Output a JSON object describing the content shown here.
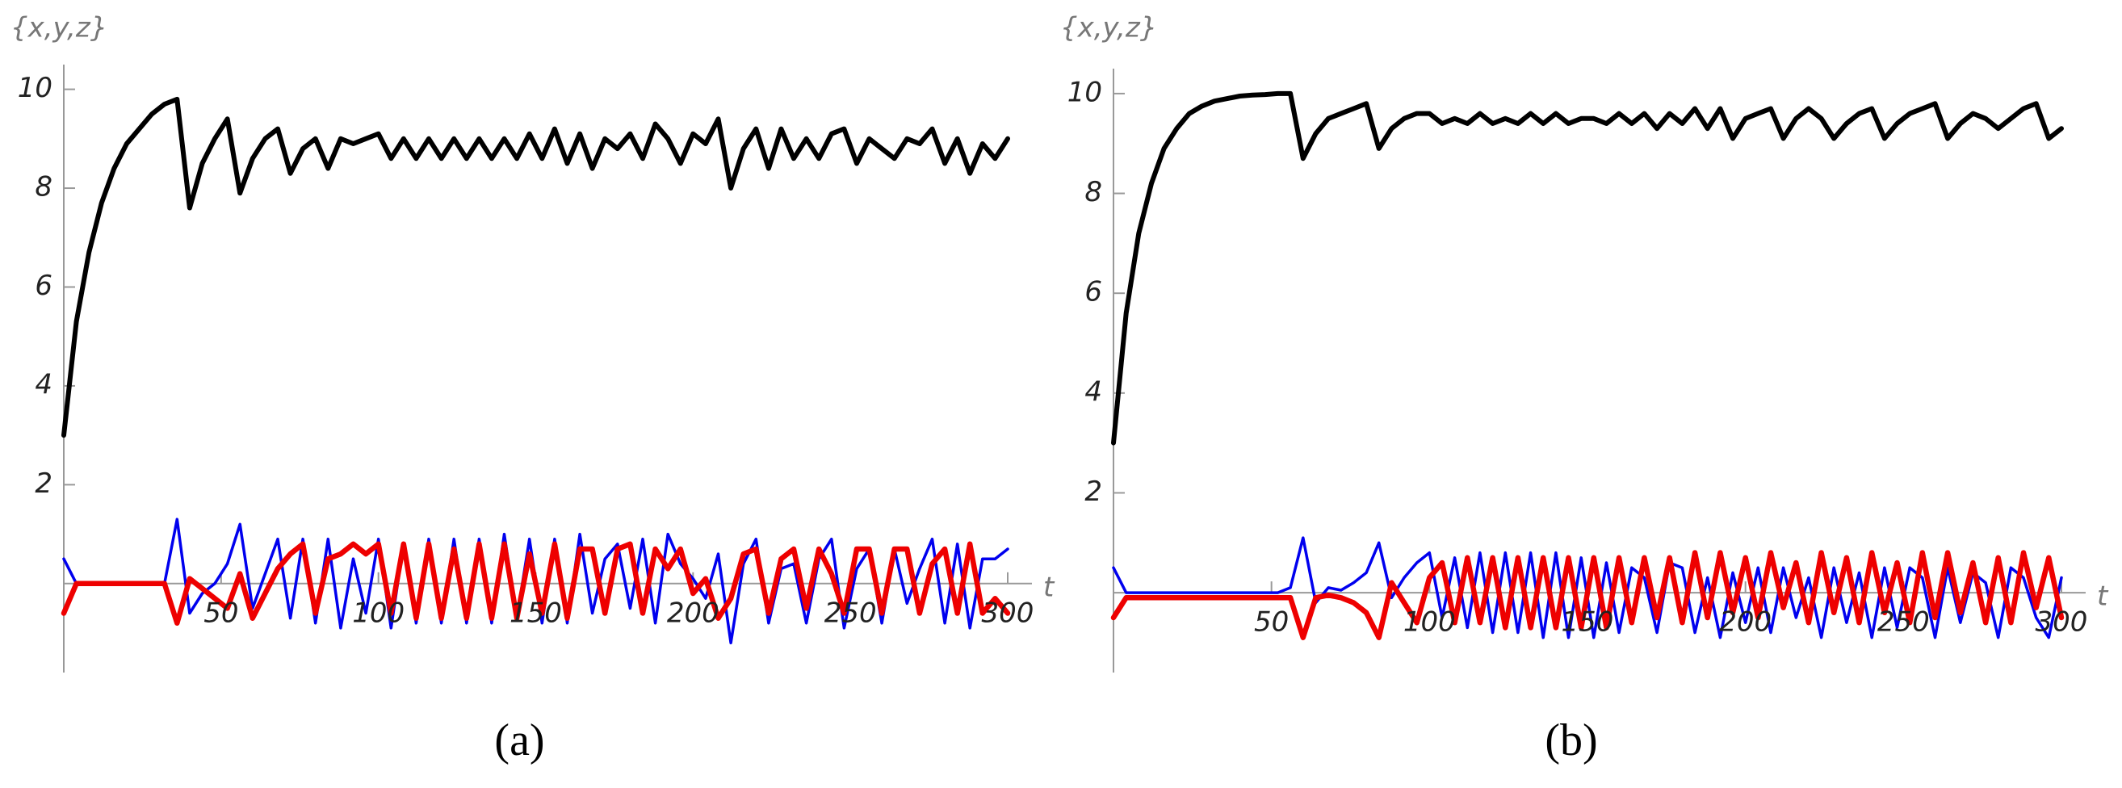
{
  "chart_data": [
    {
      "type": "line",
      "y_label": "{x,y,z}",
      "x_label": "t",
      "panel_label": "(a)",
      "xlim": [
        0,
        300
      ],
      "ylim": [
        -1.8,
        10.5
      ],
      "xticks": [
        50,
        100,
        150,
        200,
        250,
        300
      ],
      "yticks": [
        2,
        4,
        6,
        8,
        10
      ],
      "x": [
        0,
        4,
        8,
        12,
        16,
        20,
        24,
        28,
        32,
        36,
        40,
        44,
        48,
        52,
        56,
        60,
        64,
        68,
        72,
        76,
        80,
        84,
        88,
        92,
        96,
        100,
        104,
        108,
        112,
        116,
        120,
        124,
        128,
        132,
        136,
        140,
        144,
        148,
        152,
        156,
        160,
        164,
        168,
        172,
        176,
        180,
        184,
        188,
        192,
        196,
        200,
        204,
        208,
        212,
        216,
        220,
        224,
        228,
        232,
        236,
        240,
        244,
        248,
        252,
        256,
        260,
        264,
        268,
        272,
        276,
        280,
        284,
        288,
        292,
        296,
        300
      ],
      "series": [
        {
          "color": "#000000",
          "values": [
            3.0,
            5.3,
            6.7,
            7.7,
            8.4,
            8.9,
            9.2,
            9.5,
            9.7,
            9.8,
            7.6,
            8.5,
            9.0,
            9.4,
            7.9,
            8.6,
            9.0,
            9.2,
            8.3,
            8.8,
            9.0,
            8.4,
            9.0,
            8.9,
            9.0,
            9.1,
            8.6,
            9.0,
            8.6,
            9.0,
            8.6,
            9.0,
            8.6,
            9.0,
            8.6,
            9.0,
            8.6,
            9.1,
            8.6,
            9.2,
            8.5,
            9.1,
            8.4,
            9.0,
            8.8,
            9.1,
            8.6,
            9.3,
            9.0,
            8.5,
            9.1,
            8.9,
            9.4,
            8.0,
            8.8,
            9.2,
            8.4,
            9.2,
            8.6,
            9.0,
            8.6,
            9.1,
            9.2,
            8.5,
            9.0,
            8.8,
            8.6,
            9.0,
            8.9,
            9.2,
            8.5,
            9.0,
            8.3,
            8.9,
            8.6,
            9.0
          ]
        },
        {
          "color": "#0000ee",
          "values": [
            0.5,
            0,
            0,
            0,
            0,
            0,
            0,
            0,
            0,
            1.3,
            -0.6,
            -0.2,
            0,
            0.4,
            1.2,
            -0.5,
            0.2,
            0.9,
            -0.7,
            0.9,
            -0.8,
            0.9,
            -0.9,
            0.5,
            -0.6,
            0.9,
            -0.9,
            0.8,
            -0.8,
            0.9,
            -0.8,
            0.9,
            -0.8,
            0.9,
            -0.8,
            1.0,
            -0.7,
            0.9,
            -0.8,
            0.9,
            -0.8,
            1.0,
            -0.6,
            0.5,
            0.8,
            -0.5,
            0.9,
            -0.8,
            1.0,
            0.4,
            0.1,
            -0.3,
            0.6,
            -1.2,
            0.4,
            0.9,
            -0.8,
            0.3,
            0.4,
            -0.8,
            0.5,
            0.9,
            -0.9,
            0.3,
            0.7,
            -0.8,
            0.7,
            -0.4,
            0.3,
            0.9,
            -0.8,
            0.8,
            -0.9,
            0.5,
            0.5,
            0.7
          ]
        },
        {
          "color": "#ee0000",
          "values": [
            -0.6,
            0,
            0,
            0,
            0,
            0,
            0,
            0,
            0,
            -0.8,
            0.1,
            -0.1,
            -0.3,
            -0.5,
            0.2,
            -0.7,
            -0.2,
            0.3,
            0.6,
            0.8,
            -0.6,
            0.5,
            0.6,
            0.8,
            0.6,
            0.8,
            -0.6,
            0.8,
            -0.7,
            0.8,
            -0.7,
            0.7,
            -0.7,
            0.8,
            -0.7,
            0.8,
            -0.7,
            0.6,
            -0.6,
            0.8,
            -0.7,
            0.7,
            0.7,
            -0.6,
            0.7,
            0.8,
            -0.6,
            0.7,
            0.3,
            0.7,
            -0.2,
            0.1,
            -0.7,
            -0.3,
            0.6,
            0.7,
            -0.6,
            0.5,
            0.7,
            -0.5,
            0.7,
            0.2,
            -0.6,
            0.7,
            0.7,
            -0.6,
            0.7,
            0.7,
            -0.6,
            0.4,
            0.7,
            -0.6,
            0.8,
            -0.6,
            -0.3,
            -0.6
          ]
        }
      ]
    },
    {
      "type": "line",
      "y_label": "{x,y,z}",
      "x_label": "t",
      "panel_label": "(b)",
      "xlim": [
        0,
        300
      ],
      "ylim": [
        -1.6,
        10.5
      ],
      "xticks": [
        50,
        100,
        150,
        200,
        250,
        300
      ],
      "yticks": [
        2,
        4,
        6,
        8,
        10
      ],
      "x": [
        0,
        4,
        8,
        12,
        16,
        20,
        24,
        28,
        32,
        36,
        40,
        44,
        48,
        52,
        56,
        60,
        64,
        68,
        72,
        76,
        80,
        84,
        88,
        92,
        96,
        100,
        104,
        108,
        112,
        116,
        120,
        124,
        128,
        132,
        136,
        140,
        144,
        148,
        152,
        156,
        160,
        164,
        168,
        172,
        176,
        180,
        184,
        188,
        192,
        196,
        200,
        204,
        208,
        212,
        216,
        220,
        224,
        228,
        232,
        236,
        240,
        244,
        248,
        252,
        256,
        260,
        264,
        268,
        272,
        276,
        280,
        284,
        288,
        292,
        296,
        300
      ],
      "series": [
        {
          "color": "#000000",
          "values": [
            3.0,
            5.6,
            7.2,
            8.2,
            8.9,
            9.3,
            9.6,
            9.75,
            9.85,
            9.9,
            9.95,
            9.97,
            9.98,
            10.0,
            10.0,
            8.7,
            9.2,
            9.5,
            9.6,
            9.7,
            9.8,
            8.9,
            9.3,
            9.5,
            9.6,
            9.6,
            9.4,
            9.5,
            9.4,
            9.6,
            9.4,
            9.5,
            9.4,
            9.6,
            9.4,
            9.6,
            9.4,
            9.5,
            9.5,
            9.4,
            9.6,
            9.4,
            9.6,
            9.3,
            9.6,
            9.4,
            9.7,
            9.3,
            9.7,
            9.1,
            9.5,
            9.6,
            9.7,
            9.1,
            9.5,
            9.7,
            9.5,
            9.1,
            9.4,
            9.6,
            9.7,
            9.1,
            9.4,
            9.6,
            9.7,
            9.8,
            9.1,
            9.4,
            9.6,
            9.5,
            9.3,
            9.5,
            9.7,
            9.8,
            9.1,
            9.3
          ]
        },
        {
          "color": "#0000ee",
          "values": [
            0.5,
            0,
            0,
            0,
            0,
            0,
            0,
            0,
            0,
            0,
            0,
            0,
            0,
            0,
            0.1,
            1.1,
            -0.2,
            0.1,
            0.05,
            0.2,
            0.4,
            1.0,
            -0.1,
            0.3,
            0.6,
            0.8,
            -0.5,
            0.7,
            -0.7,
            0.8,
            -0.8,
            0.8,
            -0.8,
            0.8,
            -0.9,
            0.8,
            -0.9,
            0.7,
            -0.9,
            0.6,
            -0.8,
            0.5,
            0.3,
            -0.8,
            0.6,
            0.5,
            -0.8,
            0.3,
            -0.9,
            0.4,
            -0.6,
            0.5,
            -0.8,
            0.5,
            -0.5,
            0.3,
            -0.9,
            0.5,
            -0.6,
            0.4,
            -0.9,
            0.5,
            -0.7,
            0.5,
            0.3,
            -0.9,
            0.5,
            -0.6,
            0.4,
            0.2,
            -0.9,
            0.5,
            0.3,
            -0.5,
            -0.9,
            0.3
          ]
        },
        {
          "color": "#ee0000",
          "values": [
            -0.5,
            -0.1,
            -0.1,
            -0.1,
            -0.1,
            -0.1,
            -0.1,
            -0.1,
            -0.1,
            -0.1,
            -0.1,
            -0.1,
            -0.1,
            -0.1,
            -0.1,
            -0.9,
            -0.1,
            -0.05,
            -0.1,
            -0.2,
            -0.4,
            -0.9,
            0.2,
            -0.2,
            -0.6,
            0.3,
            0.6,
            -0.6,
            0.7,
            -0.6,
            0.7,
            -0.7,
            0.7,
            -0.7,
            0.7,
            -0.7,
            0.7,
            -0.7,
            0.7,
            -0.7,
            0.7,
            -0.6,
            0.7,
            -0.5,
            0.7,
            -0.6,
            0.8,
            -0.5,
            0.8,
            -0.4,
            0.7,
            -0.5,
            0.8,
            -0.3,
            0.6,
            -0.6,
            0.8,
            -0.4,
            0.7,
            -0.6,
            0.8,
            -0.4,
            0.6,
            -0.6,
            0.8,
            -0.5,
            0.8,
            -0.4,
            0.6,
            -0.6,
            0.7,
            -0.6,
            0.8,
            -0.3,
            0.7,
            -0.5
          ]
        }
      ]
    }
  ]
}
